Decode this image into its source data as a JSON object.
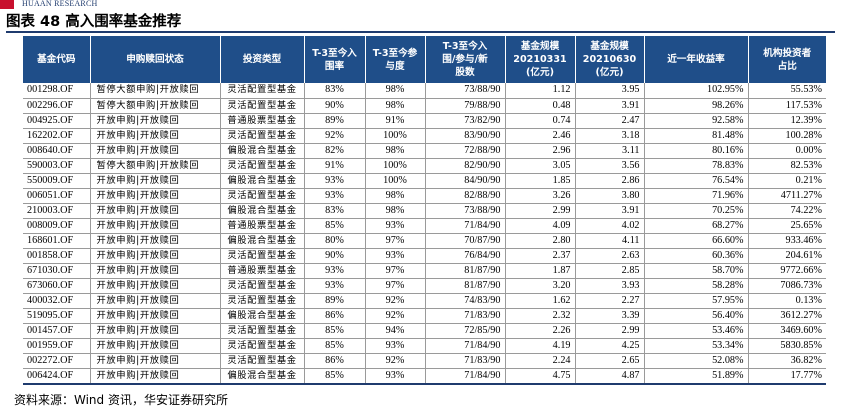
{
  "brand": {
    "text": "HUAAN RESEARCH",
    "logo_color": "#c8102e"
  },
  "title": "图表 48 高入围率基金推荐",
  "colors": {
    "header_bg": "#1f4e89",
    "rule": "#1f3b6e"
  },
  "table": {
    "headers": [
      "基金代码",
      "申购赎回状态",
      "投资类型",
      "T-3至今入\n围率",
      "T-3至今参\n与度",
      "T-3至今入\n围/参与/新\n股数",
      "基金规模\n20210331\n(亿元)",
      "基金规模\n20210630\n(亿元)",
      "近一年收益率",
      "机构投资者\n占比"
    ],
    "rows": [
      [
        "001298.OF",
        "暂停大额申购|开放赎回",
        "灵活配置型基金",
        "83%",
        "98%",
        "73/88/90",
        "1.12",
        "3.95",
        "102.95%",
        "55.53%"
      ],
      [
        "002296.OF",
        "暂停大额申购|开放赎回",
        "灵活配置型基金",
        "90%",
        "98%",
        "79/88/90",
        "0.48",
        "3.91",
        "98.26%",
        "117.53%"
      ],
      [
        "004925.OF",
        "开放申购|开放赎回",
        "普通股票型基金",
        "89%",
        "91%",
        "73/82/90",
        "0.74",
        "2.47",
        "92.58%",
        "12.39%"
      ],
      [
        "162202.OF",
        "开放申购|开放赎回",
        "灵活配置型基金",
        "92%",
        "100%",
        "83/90/90",
        "2.46",
        "3.18",
        "81.48%",
        "100.28%"
      ],
      [
        "008640.OF",
        "开放申购|开放赎回",
        "偏股混合型基金",
        "82%",
        "98%",
        "72/88/90",
        "2.96",
        "3.11",
        "80.16%",
        "0.00%"
      ],
      [
        "590003.OF",
        "暂停大额申购|开放赎回",
        "灵活配置型基金",
        "91%",
        "100%",
        "82/90/90",
        "3.05",
        "3.56",
        "78.83%",
        "82.53%"
      ],
      [
        "550009.OF",
        "开放申购|开放赎回",
        "偏股混合型基金",
        "93%",
        "100%",
        "84/90/90",
        "1.85",
        "2.86",
        "76.54%",
        "0.21%"
      ],
      [
        "006051.OF",
        "开放申购|开放赎回",
        "灵活配置型基金",
        "93%",
        "98%",
        "82/88/90",
        "3.26",
        "3.80",
        "71.96%",
        "4711.27%"
      ],
      [
        "210003.OF",
        "开放申购|开放赎回",
        "偏股混合型基金",
        "83%",
        "98%",
        "73/88/90",
        "2.99",
        "3.91",
        "70.25%",
        "74.22%"
      ],
      [
        "008009.OF",
        "开放申购|开放赎回",
        "普通股票型基金",
        "85%",
        "93%",
        "71/84/90",
        "4.09",
        "4.02",
        "68.27%",
        "25.65%"
      ],
      [
        "168601.OF",
        "开放申购|开放赎回",
        "偏股混合型基金",
        "80%",
        "97%",
        "70/87/90",
        "2.80",
        "4.11",
        "66.60%",
        "933.46%"
      ],
      [
        "001858.OF",
        "开放申购|开放赎回",
        "灵活配置型基金",
        "90%",
        "93%",
        "76/84/90",
        "2.37",
        "2.63",
        "60.36%",
        "204.61%"
      ],
      [
        "671030.OF",
        "开放申购|开放赎回",
        "普通股票型基金",
        "93%",
        "97%",
        "81/87/90",
        "1.87",
        "2.85",
        "58.70%",
        "9772.66%"
      ],
      [
        "673060.OF",
        "开放申购|开放赎回",
        "灵活配置型基金",
        "93%",
        "97%",
        "81/87/90",
        "3.20",
        "3.93",
        "58.28%",
        "7086.73%"
      ],
      [
        "400032.OF",
        "开放申购|开放赎回",
        "灵活配置型基金",
        "89%",
        "92%",
        "74/83/90",
        "1.62",
        "2.27",
        "57.95%",
        "0.13%"
      ],
      [
        "519095.OF",
        "开放申购|开放赎回",
        "偏股混合型基金",
        "86%",
        "92%",
        "71/83/90",
        "2.32",
        "3.39",
        "56.40%",
        "3612.27%"
      ],
      [
        "001457.OF",
        "开放申购|开放赎回",
        "灵活配置型基金",
        "85%",
        "94%",
        "72/85/90",
        "2.26",
        "2.99",
        "53.46%",
        "3469.60%"
      ],
      [
        "001959.OF",
        "开放申购|开放赎回",
        "灵活配置型基金",
        "85%",
        "93%",
        "71/84/90",
        "4.19",
        "4.25",
        "53.34%",
        "5830.85%"
      ],
      [
        "002272.OF",
        "开放申购|开放赎回",
        "灵活配置型基金",
        "86%",
        "92%",
        "71/83/90",
        "2.24",
        "2.65",
        "52.08%",
        "36.82%"
      ],
      [
        "006424.OF",
        "开放申购|开放赎回",
        "偏股混合型基金",
        "85%",
        "93%",
        "71/84/90",
        "4.75",
        "4.87",
        "51.89%",
        "17.77%"
      ]
    ]
  },
  "source": "资料来源：Wind 资讯，华安证券研究所"
}
